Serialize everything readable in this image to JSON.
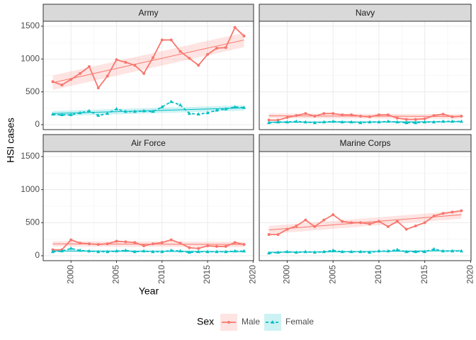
{
  "y_label": "HSI cases",
  "x_label": "Year",
  "legend_title": "Sex",
  "chart_data": [
    {
      "type": "line",
      "title": "Army",
      "x": [
        1998,
        1999,
        2000,
        2001,
        2002,
        2003,
        2004,
        2005,
        2006,
        2007,
        2008,
        2009,
        2010,
        2011,
        2012,
        2013,
        2014,
        2015,
        2016,
        2017,
        2018,
        2019
      ],
      "series": [
        {
          "name": "Male",
          "color": "#F8766D",
          "values": [
            656,
            604,
            690,
            780,
            885,
            560,
            740,
            990,
            950,
            905,
            780,
            1020,
            1290,
            1290,
            1115,
            1010,
            905,
            1070,
            1165,
            1175,
            1480,
            1350
          ],
          "trend": {
            "x": [
              1998,
              2019
            ],
            "values": [
              640,
              1290
            ],
            "lower": [
              530,
              1180
            ],
            "upper": [
              750,
              1400
            ]
          }
        },
        {
          "name": "Female",
          "color": "#00BFC4",
          "values": [
            160,
            150,
            150,
            180,
            210,
            140,
            170,
            240,
            200,
            200,
            210,
            200,
            270,
            350,
            300,
            170,
            160,
            180,
            220,
            240,
            270,
            260
          ],
          "trend": {
            "x": [
              1998,
              2019
            ],
            "values": [
              170,
              255
            ],
            "lower": [
              130,
              215
            ],
            "upper": [
              210,
              295
            ]
          }
        }
      ],
      "xlim": [
        1996.95,
        2020.05
      ],
      "ylim": [
        -75,
        1575
      ],
      "xticks": [
        2000,
        2005,
        2010,
        2015,
        2020
      ],
      "yticks": [
        0,
        500,
        1000,
        1500
      ],
      "grid": true
    },
    {
      "type": "line",
      "title": "Navy",
      "x": [
        1998,
        1999,
        2000,
        2001,
        2002,
        2003,
        2004,
        2005,
        2006,
        2007,
        2008,
        2009,
        2010,
        2011,
        2012,
        2013,
        2014,
        2015,
        2016,
        2017,
        2018,
        2019
      ],
      "series": [
        {
          "name": "Male",
          "color": "#F8766D",
          "values": [
            70,
            70,
            110,
            140,
            170,
            130,
            170,
            170,
            150,
            150,
            130,
            120,
            150,
            150,
            100,
            80,
            80,
            90,
            140,
            160,
            120,
            130
          ],
          "trend": {
            "x": [
              1998,
              2019
            ],
            "values": [
              135,
              125
            ],
            "lower": [
              100,
              90
            ],
            "upper": [
              170,
              160
            ]
          }
        },
        {
          "name": "Female",
          "color": "#00BFC4",
          "values": [
            30,
            40,
            40,
            50,
            40,
            30,
            40,
            50,
            40,
            40,
            30,
            40,
            40,
            50,
            40,
            30,
            30,
            40,
            40,
            50,
            50,
            50
          ],
          "trend": {
            "x": [
              1998,
              2019
            ],
            "values": [
              38,
              45
            ],
            "lower": [
              25,
              32
            ],
            "upper": [
              51,
              58
            ]
          }
        }
      ],
      "xlim": [
        1996.95,
        2020.05
      ],
      "ylim": [
        -75,
        1575
      ],
      "xticks": [
        2000,
        2005,
        2010,
        2015,
        2020
      ],
      "yticks": [
        0,
        500,
        1000,
        1500
      ],
      "grid": true
    },
    {
      "type": "line",
      "title": "Air Force",
      "x": [
        1998,
        1999,
        2000,
        2001,
        2002,
        2003,
        2004,
        2005,
        2006,
        2007,
        2008,
        2009,
        2010,
        2011,
        2012,
        2013,
        2014,
        2015,
        2016,
        2017,
        2018,
        2019
      ],
      "series": [
        {
          "name": "Male",
          "color": "#F8766D",
          "values": [
            90,
            90,
            240,
            190,
            180,
            170,
            180,
            220,
            210,
            200,
            150,
            180,
            200,
            240,
            190,
            120,
            110,
            150,
            140,
            140,
            200,
            170
          ],
          "trend": {
            "x": [
              1998,
              2019
            ],
            "values": [
              180,
              170
            ],
            "lower": [
              140,
              130
            ],
            "upper": [
              220,
              210
            ]
          }
        },
        {
          "name": "Female",
          "color": "#00BFC4",
          "values": [
            60,
            70,
            110,
            80,
            70,
            60,
            60,
            70,
            80,
            60,
            70,
            60,
            60,
            80,
            70,
            50,
            60,
            60,
            60,
            60,
            70,
            70
          ],
          "trend": {
            "x": [
              1998,
              2019
            ],
            "values": [
              72,
              62
            ],
            "lower": [
              58,
              48
            ],
            "upper": [
              86,
              76
            ]
          }
        }
      ],
      "xlim": [
        1996.95,
        2020.05
      ],
      "ylim": [
        -75,
        1575
      ],
      "xticks": [
        2000,
        2005,
        2010,
        2015,
        2020
      ],
      "yticks": [
        0,
        500,
        1000,
        1500
      ],
      "grid": true
    },
    {
      "type": "line",
      "title": "Marine Corps",
      "x": [
        1998,
        1999,
        2000,
        2001,
        2002,
        2003,
        2004,
        2005,
        2006,
        2007,
        2008,
        2009,
        2010,
        2011,
        2012,
        2013,
        2014,
        2015,
        2016,
        2017,
        2018,
        2019
      ],
      "series": [
        {
          "name": "Male",
          "color": "#F8766D",
          "values": [
            320,
            320,
            400,
            450,
            540,
            440,
            540,
            620,
            520,
            500,
            500,
            480,
            520,
            440,
            520,
            400,
            450,
            500,
            600,
            640,
            660,
            680
          ],
          "trend": {
            "x": [
              1998,
              2019
            ],
            "values": [
              390,
              620
            ],
            "lower": [
              330,
              560
            ],
            "upper": [
              450,
              680
            ]
          }
        },
        {
          "name": "Female",
          "color": "#00BFC4",
          "values": [
            40,
            50,
            60,
            50,
            60,
            50,
            60,
            80,
            60,
            60,
            60,
            50,
            70,
            70,
            90,
            60,
            60,
            60,
            100,
            70,
            70,
            70
          ],
          "trend": {
            "x": [
              1998,
              2019
            ],
            "values": [
              52,
              76
            ],
            "lower": [
              40,
              64
            ],
            "upper": [
              64,
              88
            ]
          }
        }
      ],
      "xlim": [
        1996.95,
        2020.05
      ],
      "ylim": [
        -75,
        1575
      ],
      "xticks": [
        2000,
        2005,
        2010,
        2015,
        2020
      ],
      "yticks": [
        0,
        500,
        1000,
        1500
      ],
      "grid": true
    }
  ]
}
